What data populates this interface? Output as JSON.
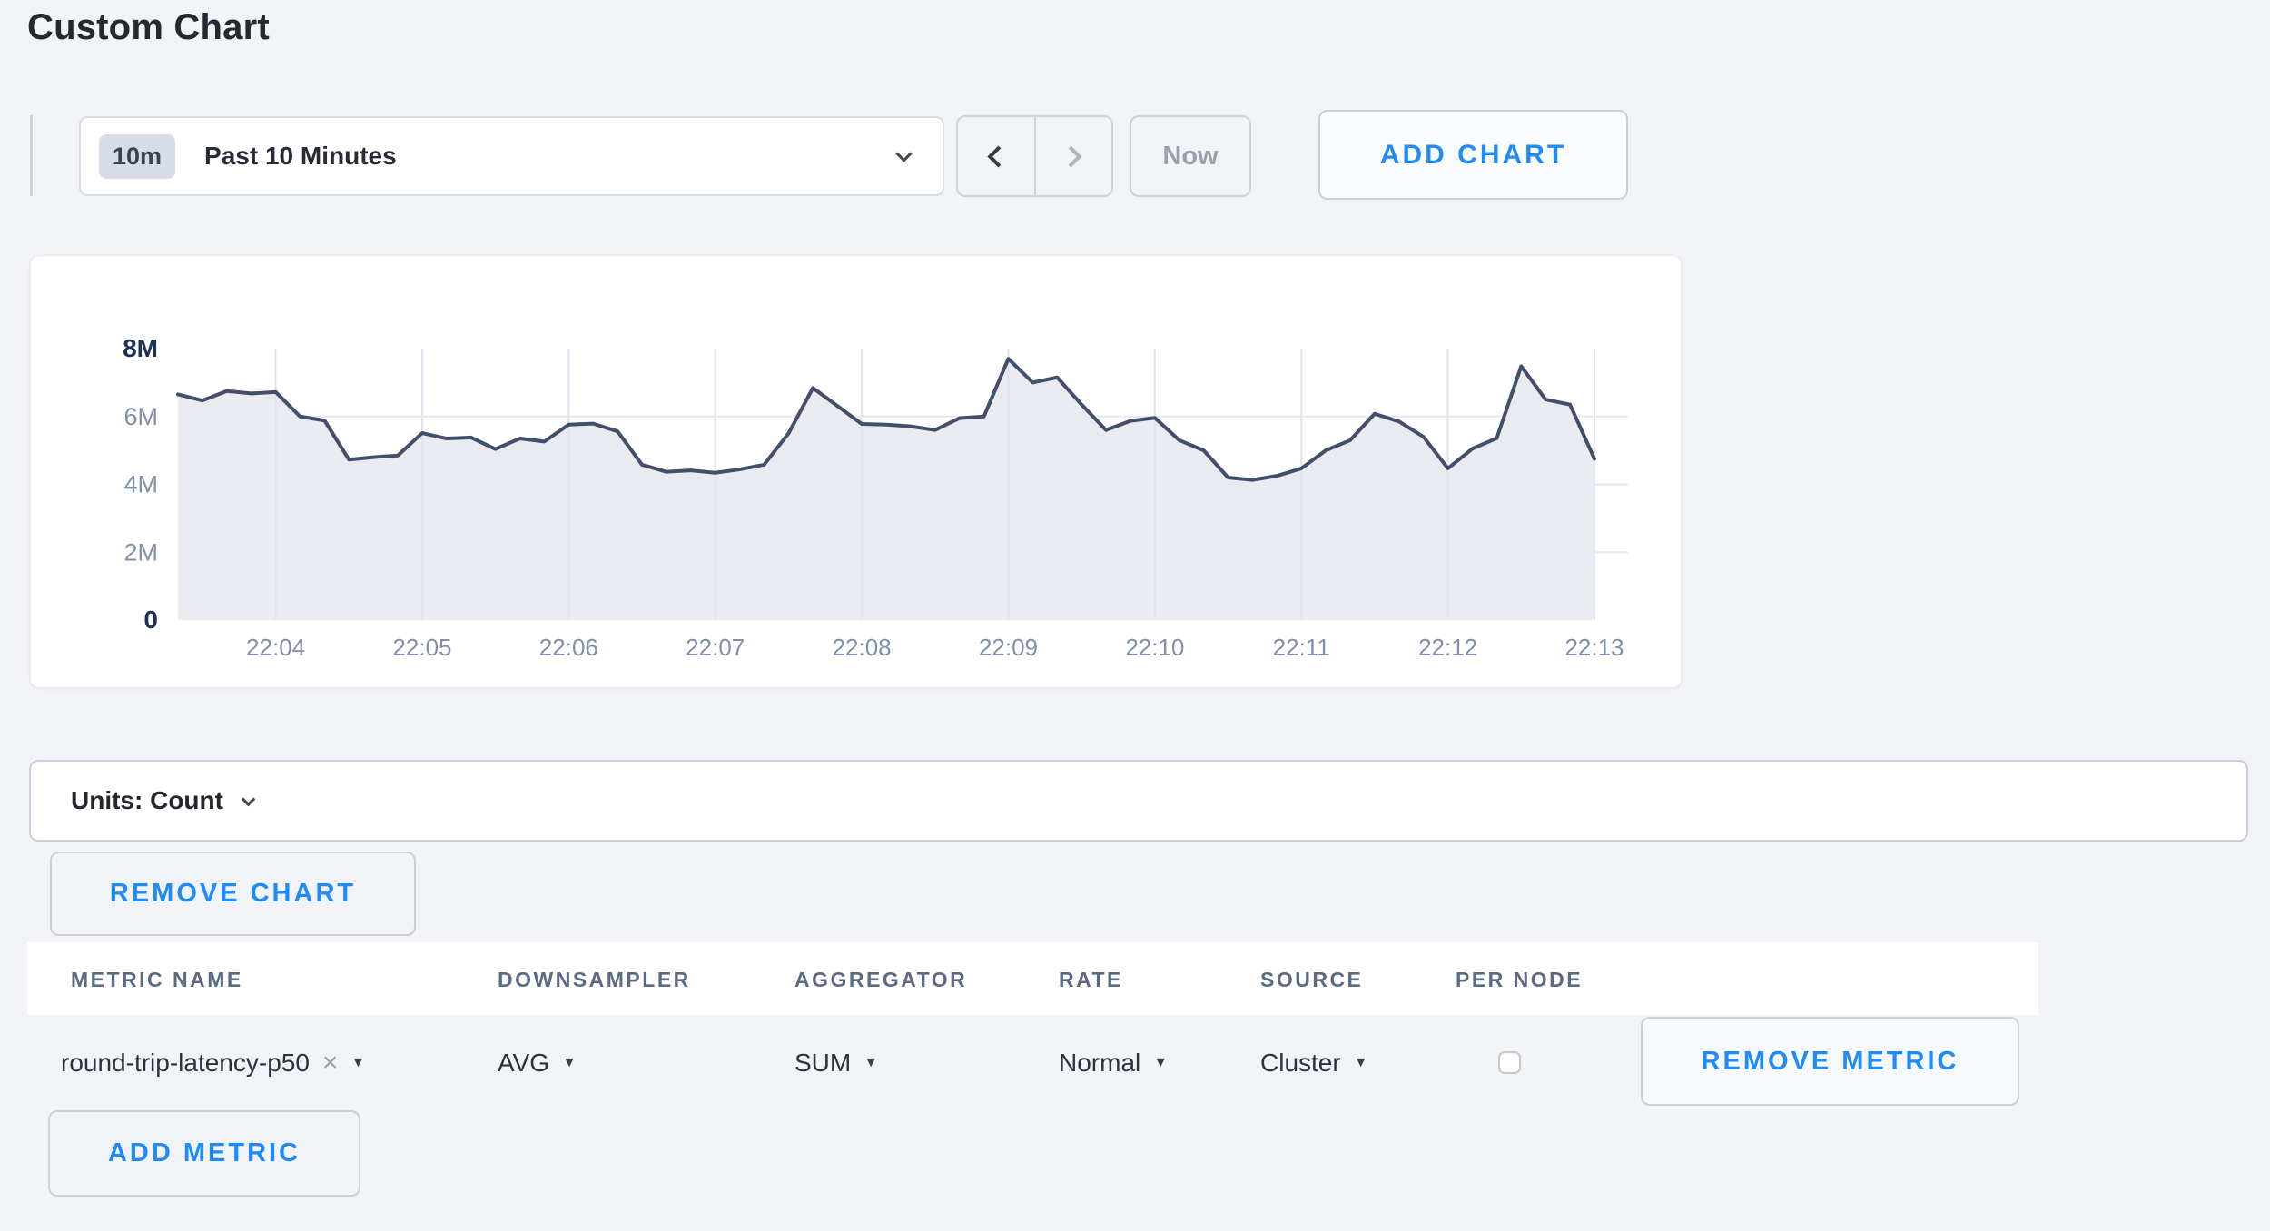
{
  "page": {
    "title": "Custom Chart",
    "background": "#f2f3f7",
    "accent_blue": "#1e8bf7"
  },
  "controls": {
    "time_range": {
      "badge": "10m",
      "label": "Past 10 Minutes"
    },
    "now_label": "Now",
    "add_chart_label": "ADD CHART"
  },
  "units_bar": {
    "label": "Units: Count"
  },
  "buttons": {
    "remove_chart": "REMOVE CHART",
    "remove_metric": "REMOVE METRIC",
    "add_metric": "ADD METRIC"
  },
  "table": {
    "headers": [
      "METRIC NAME",
      "DOWNSAMPLER",
      "AGGREGATOR",
      "RATE",
      "SOURCE",
      "PER NODE"
    ],
    "row": {
      "metric_name": "round-trip-latency-p50",
      "clear_symbol": "×",
      "downsampler": "AVG",
      "aggregator": "SUM",
      "rate": "Normal",
      "source": "Cluster",
      "per_node_checked": false
    }
  },
  "chart_data": {
    "type": "area",
    "title": "",
    "xlabel": "",
    "ylabel": "Count",
    "x_ticks": [
      "22:04",
      "22:05",
      "22:06",
      "22:07",
      "22:08",
      "22:09",
      "22:10",
      "22:11",
      "22:12",
      "22:13"
    ],
    "x_tick_indices": [
      4,
      10,
      16,
      22,
      28,
      34,
      40,
      46,
      52,
      58
    ],
    "interval_seconds": 10,
    "y_ticks": [
      "8M",
      "6M",
      "4M",
      "2M",
      "0"
    ],
    "y_tick_values_millions": [
      8,
      6,
      4,
      2,
      0
    ],
    "ylim_millions": [
      0,
      8
    ],
    "grid": true,
    "legend": "none",
    "series": [
      {
        "name": "round-trip-latency-p50",
        "values_millions": [
          6.65,
          6.47,
          6.75,
          6.68,
          6.72,
          6.0,
          5.88,
          4.73,
          4.8,
          4.85,
          5.51,
          5.35,
          5.38,
          5.04,
          5.35,
          5.26,
          5.76,
          5.79,
          5.56,
          4.58,
          4.37,
          4.41,
          4.34,
          4.44,
          4.58,
          5.5,
          6.84,
          6.31,
          5.78,
          5.76,
          5.71,
          5.6,
          5.95,
          6.0,
          7.7,
          7.0,
          7.15,
          6.35,
          5.6,
          5.87,
          5.96,
          5.3,
          5.0,
          4.2,
          4.13,
          4.25,
          4.47,
          5.0,
          5.3,
          6.08,
          5.85,
          5.4,
          4.47,
          5.05,
          5.36,
          7.48,
          6.5,
          6.35,
          4.75
        ]
      }
    ],
    "colors": {
      "line": "#424f6b",
      "fill": "#e9ebf1",
      "grid_h": "#e5e8ef",
      "grid_v": "#dfe4ee",
      "tick_label": "#8090a8",
      "tick_label_strong": "#1c3158"
    }
  }
}
